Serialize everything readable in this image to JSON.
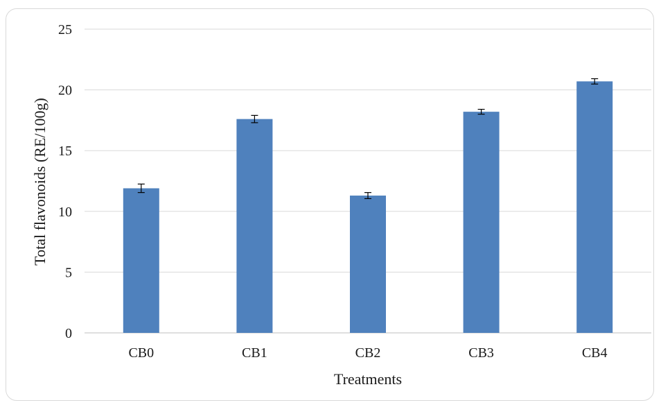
{
  "chart_data": {
    "type": "bar",
    "title": "",
    "xlabel": "Treatments",
    "ylabel": "Total  flavonoids (RE/100g)",
    "categories": [
      "CB0",
      "CB1",
      "CB2",
      "CB3",
      "CB4"
    ],
    "values": [
      11.9,
      17.6,
      11.3,
      18.2,
      20.7
    ],
    "error": [
      0.35,
      0.3,
      0.25,
      0.2,
      0.22
    ],
    "ylim": [
      0,
      25
    ],
    "yticks": [
      "0",
      "5",
      "10",
      "15",
      "20",
      "25"
    ],
    "grid": true,
    "legend": "none",
    "bar_color": "#4f81bd"
  }
}
